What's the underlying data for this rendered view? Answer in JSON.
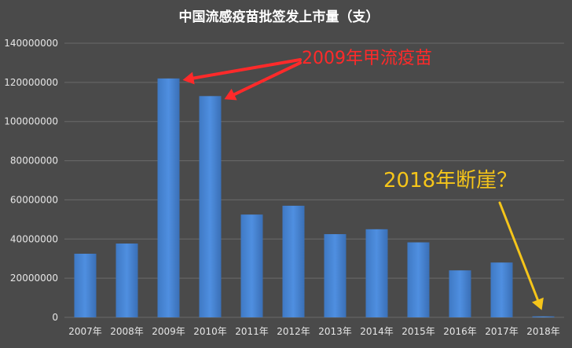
{
  "chart_data": {
    "type": "bar",
    "title": "中国流感疫苗批签发上市量（支）",
    "categories": [
      "2007年",
      "2008年",
      "2009年",
      "2010年",
      "2011年",
      "2012年",
      "2013年",
      "2014年",
      "2015年",
      "2016年",
      "2017年",
      "2018年"
    ],
    "values": [
      32500000,
      37700000,
      122000000,
      113000000,
      52500000,
      57000000,
      42500000,
      45000000,
      38300000,
      24000000,
      28000000,
      500000
    ],
    "ylim": [
      0,
      140000000
    ],
    "yticks": [
      "0",
      "20000000",
      "40000000",
      "60000000",
      "80000000",
      "100000000",
      "120000000",
      "140000000"
    ],
    "grid": true,
    "bar_color": "#4a86d4",
    "annotations": [
      {
        "text": "2009年甲流疫苗",
        "color": "#ff2a2a",
        "points_to": [
          "2009年",
          "2010年"
        ]
      },
      {
        "text": "2018年断崖？",
        "color": "#f5c51a",
        "points_to": [
          "2018年"
        ]
      }
    ]
  }
}
